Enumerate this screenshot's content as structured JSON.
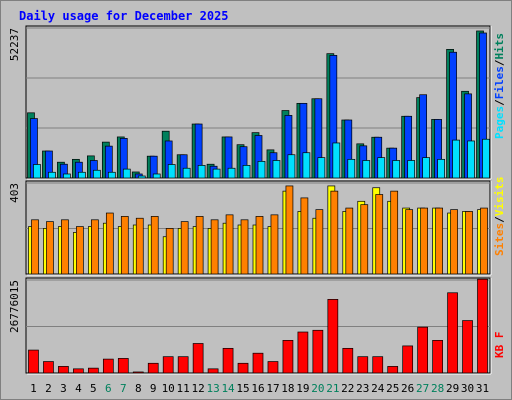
{
  "title": "Daily usage for December 2025",
  "colors": {
    "background": "#c0c0c0",
    "pages": "#00e0ff",
    "files": "#0040ff",
    "hits": "#00805c",
    "visits": "#ffff00",
    "sites": "#ff8000",
    "kbytes": "#ff0000",
    "title": "#0000ff",
    "weekend": "#00805c"
  },
  "legend": {
    "pages": "Pages",
    "files": "Files",
    "hits": "Hits",
    "sites": "Sites",
    "visits": "Visits",
    "kbytes": "KB F",
    "sep": "/"
  },
  "chart_data": [
    {
      "type": "bar",
      "panel": "hits-files-pages",
      "categories": [
        "1",
        "2",
        "3",
        "4",
        "5",
        "6",
        "7",
        "8",
        "9",
        "10",
        "11",
        "12",
        "13",
        "14",
        "15",
        "16",
        "17",
        "18",
        "19",
        "20",
        "21",
        "22",
        "23",
        "24",
        "25",
        "26",
        "27",
        "28",
        "29",
        "30",
        "31"
      ],
      "weekend_days": [
        "6",
        "7",
        "13",
        "14",
        "20",
        "21",
        "27",
        "28"
      ],
      "ymax_label": "52237",
      "ylim": [
        0,
        52237
      ],
      "series": [
        {
          "name": "Hits",
          "values": [
            22700,
            9400,
            5500,
            6500,
            7700,
            12500,
            14300,
            2100,
            7600,
            16300,
            8100,
            18800,
            4800,
            14300,
            11600,
            15800,
            9800,
            23500,
            26000,
            27600,
            43300,
            20200,
            11900,
            14200,
            10400,
            21500,
            28000,
            20400,
            44800,
            30200,
            51200
          ]
        },
        {
          "name": "Files",
          "values": [
            20700,
            9400,
            4800,
            5500,
            6100,
            11100,
            13800,
            1400,
            7600,
            12900,
            8100,
            18800,
            4100,
            14300,
            10900,
            14800,
            8800,
            21800,
            26000,
            27600,
            42700,
            20200,
            11200,
            14200,
            10400,
            21500,
            29000,
            20400,
            43800,
            29300,
            50500
          ]
        },
        {
          "name": "Pages",
          "values": [
            4700,
            2000,
            1400,
            2000,
            2700,
            2000,
            3100,
            700,
            1400,
            4700,
            3400,
            4400,
            3100,
            3400,
            4400,
            5800,
            6100,
            8100,
            8800,
            7100,
            12200,
            6500,
            6100,
            7100,
            6100,
            6100,
            7100,
            6500,
            13200,
            12900,
            13500
          ]
        }
      ]
    },
    {
      "type": "bar",
      "panel": "visits-sites",
      "categories": [
        "1",
        "2",
        "3",
        "4",
        "5",
        "6",
        "7",
        "8",
        "9",
        "10",
        "11",
        "12",
        "13",
        "14",
        "15",
        "16",
        "17",
        "18",
        "19",
        "20",
        "21",
        "22",
        "23",
        "24",
        "25",
        "26",
        "27",
        "28",
        "29",
        "30",
        "31"
      ],
      "ymax_label": "403",
      "ylim": [
        0,
        403
      ],
      "series": [
        {
          "name": "Visits",
          "values": [
            210,
            202,
            210,
            184,
            210,
            225,
            210,
            217,
            217,
            165,
            202,
            210,
            202,
            225,
            217,
            217,
            210,
            367,
            277,
            247,
            390,
            277,
            322,
            382,
            322,
            292,
            292,
            292,
            270,
            277,
            285
          ]
        },
        {
          "name": "Sites",
          "values": [
            240,
            232,
            240,
            210,
            240,
            270,
            255,
            247,
            255,
            202,
            232,
            255,
            240,
            262,
            240,
            255,
            262,
            390,
            337,
            285,
            367,
            292,
            307,
            352,
            367,
            285,
            292,
            292,
            285,
            277,
            292
          ]
        }
      ]
    },
    {
      "type": "bar",
      "panel": "kbytes",
      "categories": [
        "1",
        "2",
        "3",
        "4",
        "5",
        "6",
        "7",
        "8",
        "9",
        "10",
        "11",
        "12",
        "13",
        "14",
        "15",
        "16",
        "17",
        "18",
        "19",
        "20",
        "21",
        "22",
        "23",
        "24",
        "25",
        "26",
        "27",
        "28",
        "29",
        "30",
        "31"
      ],
      "ymax_label": "26776015",
      "ylim": [
        0,
        26776015
      ],
      "series": [
        {
          "name": "KB F",
          "values": [
            6600000,
            3300000,
            1900000,
            1200000,
            1400000,
            4000000,
            4200000,
            300000,
            2800000,
            4700000,
            4700000,
            8500000,
            1200000,
            7100000,
            2800000,
            5700000,
            3300000,
            9400000,
            11800000,
            12300000,
            21200000,
            7100000,
            4700000,
            4700000,
            1900000,
            7800000,
            13200000,
            9400000,
            23100000,
            15100000,
            27000000
          ]
        }
      ]
    }
  ]
}
